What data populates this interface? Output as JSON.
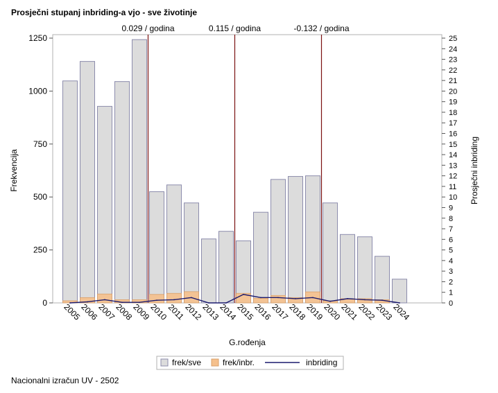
{
  "title": "Prosječni stupanj inbriding-a vjo - sve životinje",
  "footer": "Nacionalni izračun UV - 2502",
  "chart_data": {
    "type": "bar",
    "title": "Prosječni stupanj inbriding-a vjo - sve životinje",
    "xlabel": "G.rođenja",
    "ylabel": "Frekvencija",
    "y2label": "Prosječni inbriding",
    "categories": [
      "2005",
      "2006",
      "2007",
      "2008",
      "2009",
      "2010",
      "2011",
      "2012",
      "2013",
      "2014",
      "2015",
      "2016",
      "2017",
      "2018",
      "2019",
      "2020",
      "2021",
      "2022",
      "2023",
      "2024"
    ],
    "series": [
      {
        "name": "frek/sve",
        "type": "bar",
        "color": "#dcdcdc",
        "values": [
          1048,
          1140,
          928,
          1045,
          1243,
          525,
          557,
          472,
          302,
          338,
          293,
          428,
          583,
          597,
          600,
          472,
          323,
          312,
          220,
          112
        ]
      },
      {
        "name": "frek/inbr.",
        "type": "bar",
        "color": "#f5c08c",
        "values": [
          10,
          25,
          42,
          15,
          15,
          40,
          45,
          53,
          0,
          0,
          45,
          22,
          35,
          25,
          52,
          10,
          20,
          20,
          15,
          0
        ]
      },
      {
        "name": "inbriding",
        "type": "line",
        "axis": "right",
        "color": "#1a1a6e",
        "values": [
          0.0,
          0.1,
          0.3,
          0.05,
          0.05,
          0.25,
          0.3,
          0.5,
          0.0,
          0.0,
          0.8,
          0.5,
          0.5,
          0.4,
          0.5,
          0.15,
          0.4,
          0.3,
          0.25,
          0.0
        ]
      }
    ],
    "ylim": [
      0,
      1250
    ],
    "yticks": [
      0,
      250,
      500,
      750,
      1000,
      1250
    ],
    "y2lim": [
      0,
      25
    ],
    "y2ticks": [
      0,
      1,
      2,
      3,
      4,
      5,
      6,
      7,
      8,
      9,
      10,
      11,
      12,
      13,
      14,
      15,
      16,
      17,
      18,
      19,
      20,
      21,
      22,
      23,
      24,
      25
    ],
    "reference_lines": [
      {
        "after_category": "2009",
        "label": "0.029 / godina"
      },
      {
        "after_category": "2014",
        "label": "0.115 / godina"
      },
      {
        "after_category": "2019",
        "label": "-0.132 / godina"
      }
    ],
    "legend": [
      "frek/sve",
      "frek/inbr.",
      "inbriding"
    ],
    "legend_position": "bottom-center"
  }
}
